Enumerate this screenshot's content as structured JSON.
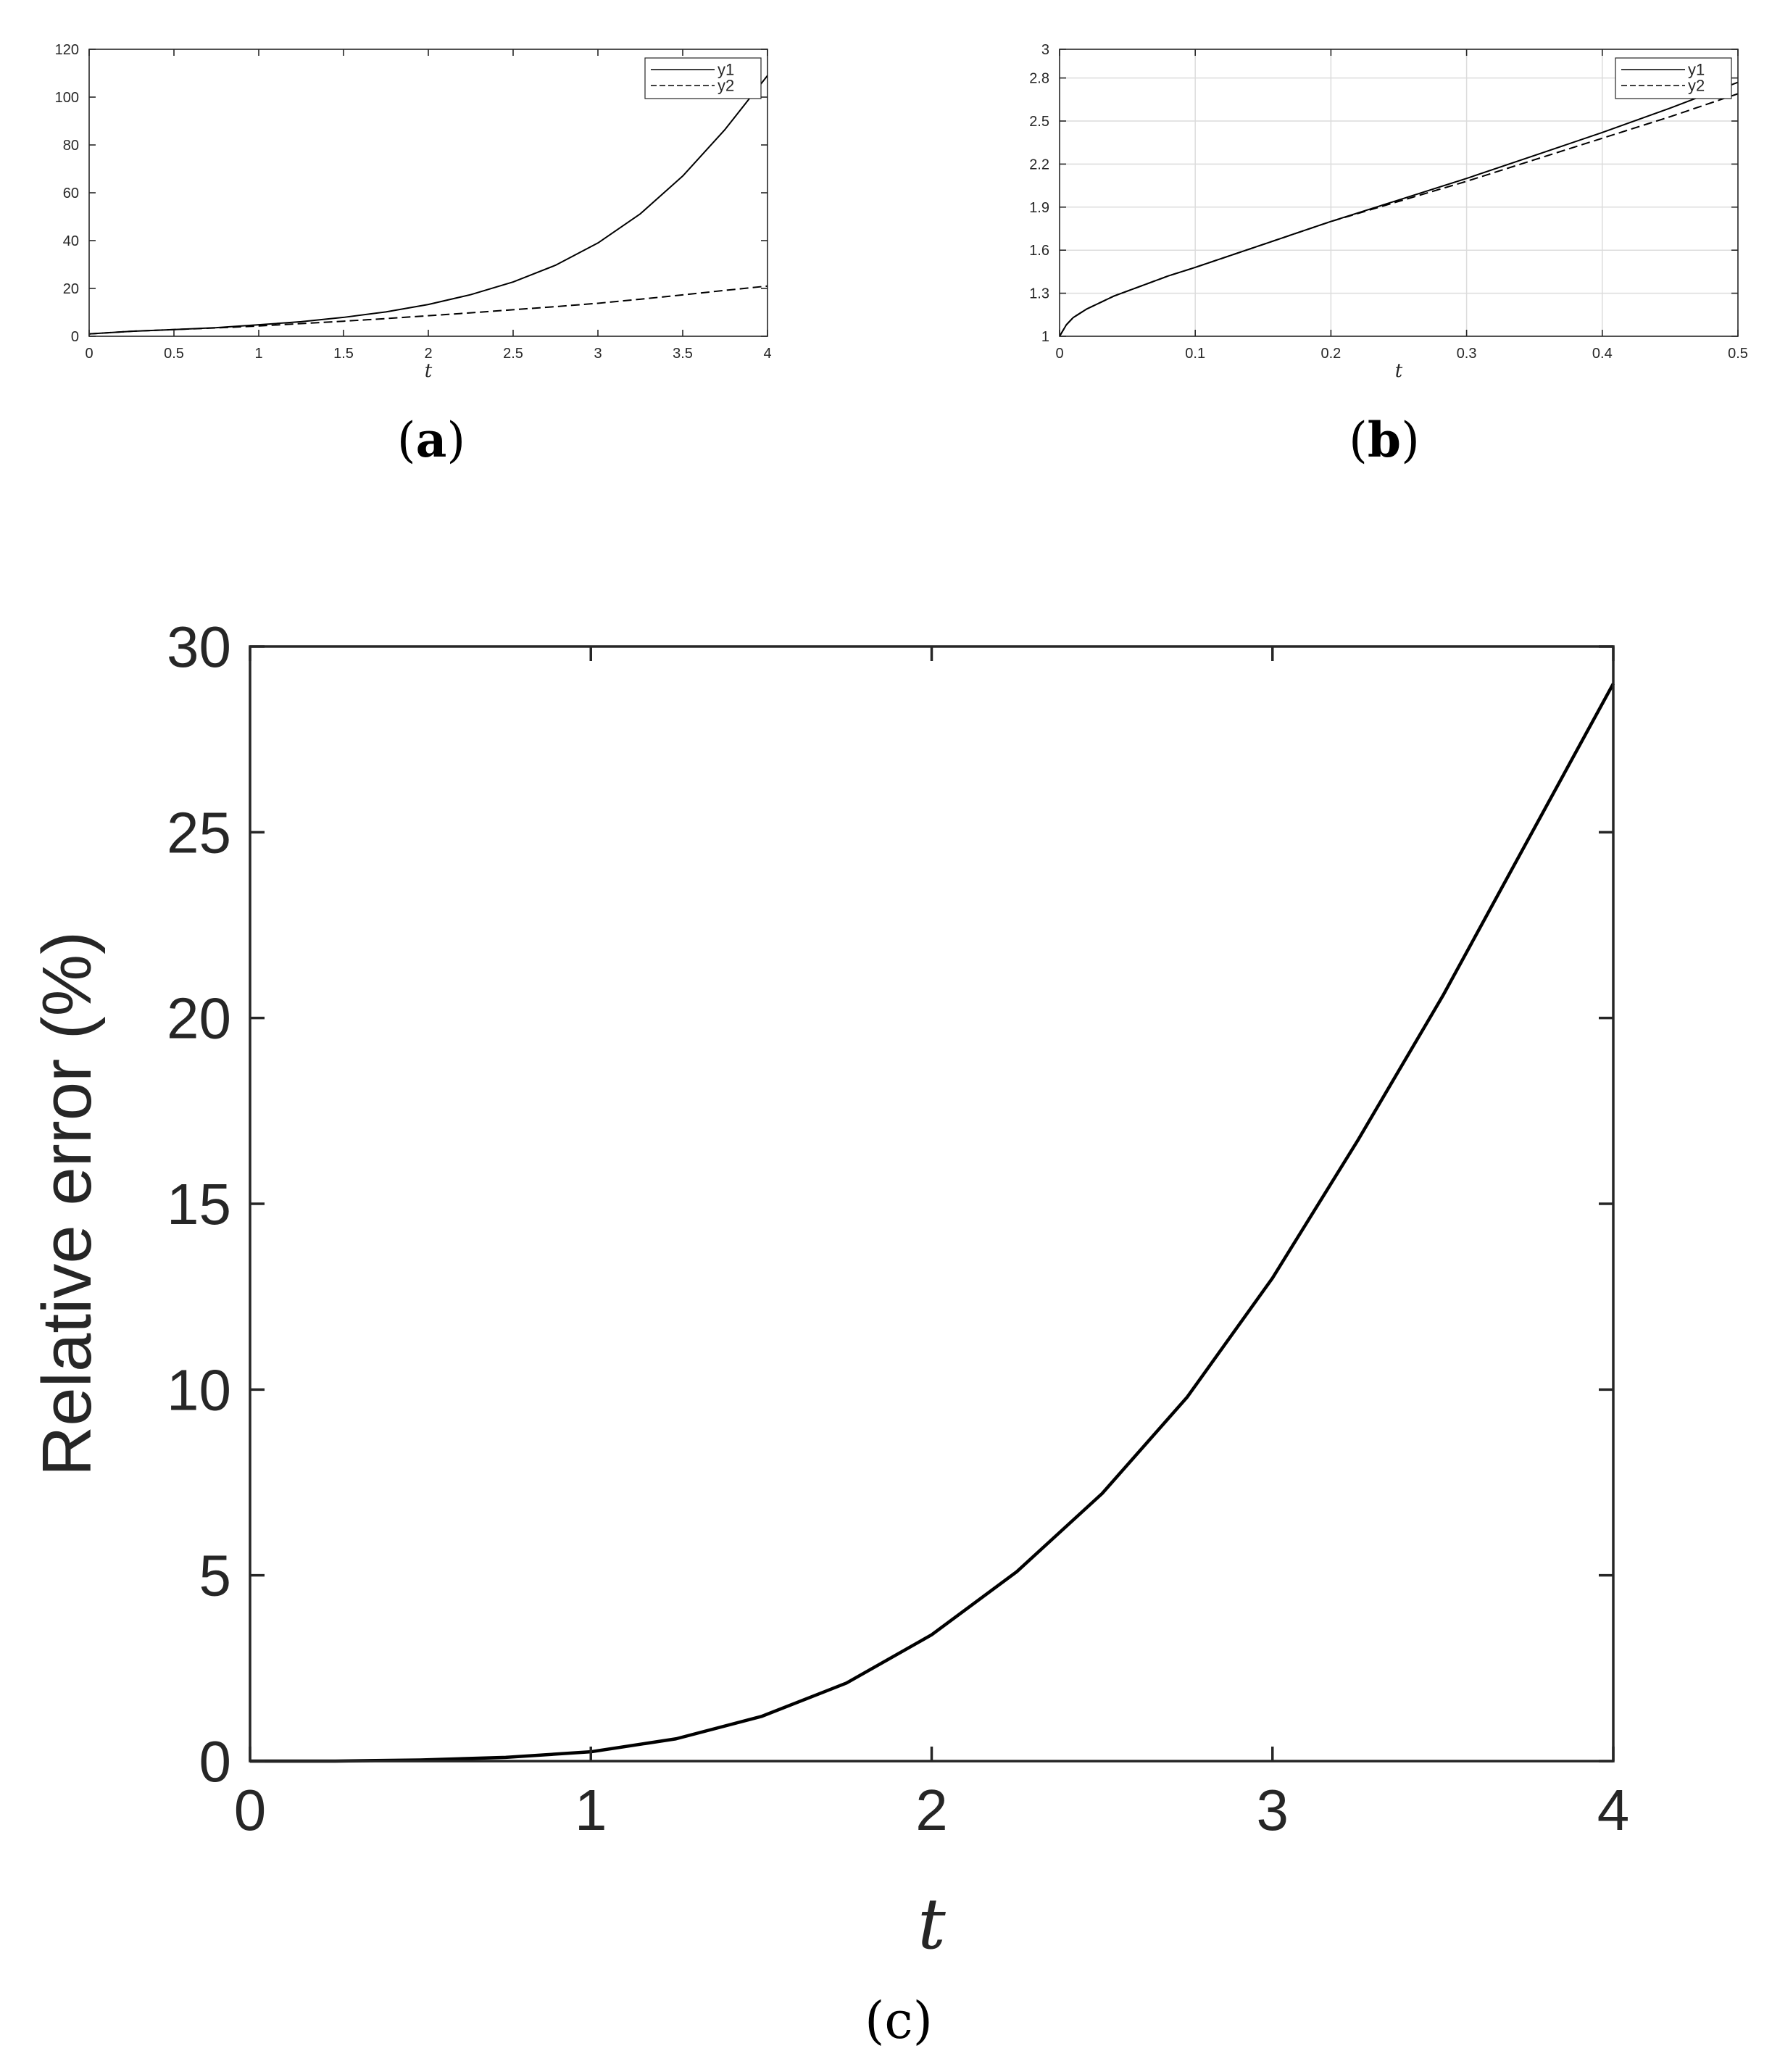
{
  "colors": {
    "line": "#000000",
    "axis": "#262626",
    "grid": "#dcdcdc"
  },
  "captions": {
    "a_open": "(",
    "a_letter": "a",
    "a_close": ")",
    "b_open": "(",
    "b_letter": "b",
    "b_close": ")",
    "c": "(c)"
  },
  "chart_data": [
    {
      "id": "a",
      "type": "line",
      "xlabel": "t",
      "ylabel": "",
      "xlim": [
        0,
        4
      ],
      "ylim": [
        0,
        120
      ],
      "xticks": [
        0,
        0.5,
        1,
        1.5,
        2,
        2.5,
        3,
        3.5,
        4
      ],
      "xtick_labels": [
        "0",
        "0.5",
        "1",
        "1.5",
        "2",
        "2.5",
        "3",
        "3.5",
        "4"
      ],
      "yticks": [
        0,
        20,
        40,
        60,
        80,
        100,
        120
      ],
      "ytick_labels": [
        "0",
        "20",
        "40",
        "60",
        "80",
        "100",
        "120"
      ],
      "grid": false,
      "legend": "top-right",
      "series": [
        {
          "name": "y1",
          "style": "solid",
          "x": [
            0,
            0.25,
            0.5,
            0.75,
            1,
            1.25,
            1.5,
            1.75,
            2,
            2.25,
            2.5,
            2.75,
            3,
            3.25,
            3.5,
            3.75,
            4
          ],
          "y": [
            1,
            2.1,
            2.8,
            3.6,
            4.8,
            6.1,
            7.9,
            10.2,
            13.3,
            17.4,
            22.7,
            29.7,
            39.0,
            51.2,
            67.0,
            86.5,
            109
          ]
        },
        {
          "name": "y2",
          "style": "dashed",
          "x": [
            0,
            0.25,
            0.5,
            0.75,
            1,
            1.25,
            1.5,
            1.75,
            2,
            2.25,
            2.5,
            2.75,
            3,
            3.25,
            3.5,
            3.75,
            4
          ],
          "y": [
            1,
            2.1,
            2.8,
            3.5,
            4.3,
            5.3,
            6.3,
            7.4,
            8.6,
            9.8,
            11.1,
            12.4,
            13.8,
            15.5,
            17.3,
            19.2,
            21
          ]
        }
      ]
    },
    {
      "id": "b",
      "type": "line",
      "xlabel": "t",
      "ylabel": "",
      "xlim": [
        0,
        0.5
      ],
      "ylim": [
        1,
        3
      ],
      "xticks": [
        0,
        0.1,
        0.2,
        0.3,
        0.4,
        0.5
      ],
      "xtick_labels": [
        "0",
        "0.1",
        "0.2",
        "0.3",
        "0.4",
        "0.5"
      ],
      "yticks": [
        1,
        1.3,
        1.6,
        1.9,
        2.2,
        2.5,
        2.8,
        3
      ],
      "ytick_labels": [
        "1",
        "1.3",
        "1.6",
        "1.9",
        "2.2",
        "2.5",
        "2.8",
        "3"
      ],
      "grid": true,
      "legend": "top-right",
      "series": [
        {
          "name": "y1",
          "style": "solid",
          "x": [
            0,
            0.005,
            0.01,
            0.02,
            0.04,
            0.06,
            0.08,
            0.1,
            0.15,
            0.2,
            0.25,
            0.3,
            0.35,
            0.4,
            0.45,
            0.5
          ],
          "y": [
            1,
            1.08,
            1.13,
            1.19,
            1.28,
            1.35,
            1.42,
            1.48,
            1.64,
            1.8,
            1.95,
            2.1,
            2.26,
            2.42,
            2.59,
            2.77
          ]
        },
        {
          "name": "y2",
          "style": "dashed",
          "x": [
            0,
            0.005,
            0.01,
            0.02,
            0.04,
            0.06,
            0.08,
            0.1,
            0.15,
            0.2,
            0.25,
            0.3,
            0.35,
            0.4,
            0.45,
            0.5
          ],
          "y": [
            1,
            1.08,
            1.13,
            1.19,
            1.28,
            1.35,
            1.42,
            1.48,
            1.64,
            1.8,
            1.94,
            2.08,
            2.23,
            2.38,
            2.53,
            2.69
          ]
        }
      ]
    },
    {
      "id": "c",
      "type": "line",
      "xlabel": "t",
      "ylabel": "Relative error (%)",
      "xlim": [
        0,
        4
      ],
      "ylim": [
        0,
        30
      ],
      "xticks": [
        0,
        1,
        2,
        3,
        4
      ],
      "xtick_labels": [
        "0",
        "1",
        "2",
        "3",
        "4"
      ],
      "yticks": [
        0,
        5,
        10,
        15,
        20,
        25,
        30
      ],
      "ytick_labels": [
        "0",
        "5",
        "10",
        "15",
        "20",
        "25",
        "30"
      ],
      "grid": false,
      "legend": "none",
      "series": [
        {
          "style": "solid",
          "x": [
            0,
            0.25,
            0.5,
            0.75,
            1,
            1.25,
            1.5,
            1.75,
            2,
            2.25,
            2.5,
            2.75,
            3,
            3.25,
            3.5,
            3.75,
            4
          ],
          "y": [
            0,
            0.0,
            0.03,
            0.1,
            0.25,
            0.6,
            1.2,
            2.1,
            3.4,
            5.1,
            7.2,
            9.8,
            13.0,
            16.7,
            20.6,
            24.8,
            29
          ]
        }
      ]
    }
  ]
}
